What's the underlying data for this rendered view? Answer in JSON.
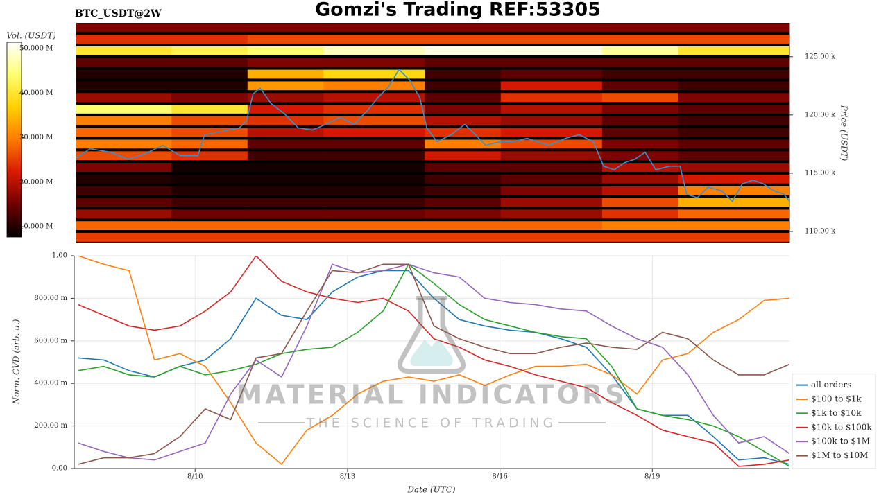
{
  "title": "Gomzi's Trading REF:53305",
  "watermark": {
    "name": "MATERIAL INDICATORS",
    "tagline": "THE SCIENCE OF TRADING"
  },
  "chart_data": [
    {
      "type": "heatmap",
      "title": "BTC_USDT@2W",
      "y_label": "Price (USDT)",
      "colorbar_label": "Vol. (USDT)",
      "xlim": [
        7.62,
        21.7
      ],
      "ylim": [
        109050,
        127900
      ],
      "yticks": [
        {
          "value": 110000,
          "label": "110.00 k"
        },
        {
          "value": 115000,
          "label": "115.00 k"
        },
        {
          "value": 120000,
          "label": "120.00 k"
        },
        {
          "value": 125000,
          "label": "125.00 k"
        }
      ],
      "clim": [
        7.7,
        51.4
      ],
      "cticks": [
        {
          "value": 10,
          "label": "10.000 M"
        },
        {
          "value": 20,
          "label": "20.000 M"
        },
        {
          "value": 30,
          "label": "30.000 M"
        },
        {
          "value": 40,
          "label": "40.000 M"
        },
        {
          "value": 50,
          "label": "50.000 M"
        }
      ],
      "colormap": [
        "#000000",
        "#6e0000",
        "#d81a00",
        "#ff7a00",
        "#ffd000",
        "#ffff70",
        "#ffffff"
      ],
      "x_edges": [
        7.62,
        9.5,
        11,
        12.5,
        14.5,
        16,
        18,
        19.5,
        21.7
      ],
      "y_edges": [
        109000,
        110000,
        111000,
        112000,
        113000,
        114000,
        115000,
        116000,
        117000,
        118000,
        119000,
        120000,
        121000,
        122000,
        123000,
        124000,
        125000,
        126000,
        127000,
        128000
      ],
      "z": [
        [
          25,
          25,
          25,
          25,
          25,
          25,
          25,
          25
        ],
        [
          28,
          28,
          28,
          28,
          28,
          28,
          30,
          30
        ],
        [
          18,
          15,
          15,
          15,
          16,
          18,
          24,
          28
        ],
        [
          14,
          12,
          12,
          12,
          14,
          18,
          26,
          34
        ],
        [
          12,
          10,
          10,
          10,
          12,
          16,
          20,
          30
        ],
        [
          10,
          9,
          9,
          9,
          12,
          14,
          18,
          22
        ],
        [
          16,
          9,
          9,
          9,
          14,
          14,
          20,
          18
        ],
        [
          26,
          24,
          12,
          12,
          22,
          18,
          16,
          14
        ],
        [
          30,
          28,
          14,
          14,
          30,
          26,
          16,
          14
        ],
        [
          28,
          26,
          20,
          22,
          24,
          22,
          14,
          12
        ],
        [
          30,
          26,
          24,
          26,
          20,
          18,
          14,
          12
        ],
        [
          44,
          40,
          22,
          24,
          16,
          20,
          16,
          14
        ],
        [
          18,
          16,
          18,
          20,
          14,
          24,
          26,
          16
        ],
        [
          10,
          10,
          32,
          30,
          12,
          22,
          14,
          12
        ],
        [
          10,
          10,
          34,
          38,
          12,
          14,
          12,
          12
        ],
        [
          14,
          14,
          16,
          16,
          14,
          14,
          14,
          14
        ],
        [
          40,
          42,
          44,
          48,
          50,
          50,
          46,
          40
        ],
        [
          24,
          24,
          26,
          26,
          26,
          26,
          26,
          26
        ],
        [
          16,
          16,
          16,
          16,
          16,
          16,
          16,
          16
        ]
      ],
      "series": [
        {
          "color": "#3a8fd0",
          "x": [
            7.62,
            7.89,
            8.3,
            8.65,
            8.99,
            9.33,
            9.67,
            10.02,
            10.15,
            10.5,
            10.84,
            10.98,
            11.11,
            11.25,
            11.46,
            11.73,
            12.0,
            12.28,
            12.55,
            12.83,
            13.1,
            13.37,
            13.58,
            13.78,
            13.99,
            14.2,
            14.4,
            14.54,
            14.74,
            15.02,
            15.29,
            15.5,
            15.7,
            15.98,
            16.25,
            16.52,
            16.94,
            17.28,
            17.55,
            17.83,
            18.03,
            18.24,
            18.44,
            18.65,
            18.85,
            19.06,
            19.33,
            19.54,
            19.67,
            19.88,
            20.09,
            20.36,
            20.57,
            20.77,
            20.98,
            21.18,
            21.39,
            21.59,
            21.7
          ],
          "values": [
            116300,
            117100,
            116800,
            116200,
            116700,
            117400,
            116500,
            116500,
            118300,
            118600,
            118900,
            119500,
            121800,
            122300,
            121000,
            120100,
            118900,
            118700,
            119200,
            119800,
            119200,
            120400,
            121500,
            122400,
            123900,
            123000,
            121500,
            118900,
            117700,
            118300,
            119200,
            118300,
            117400,
            117700,
            117700,
            118000,
            117400,
            118000,
            118300,
            117700,
            115600,
            115300,
            115900,
            116200,
            116800,
            115300,
            115600,
            115600,
            113200,
            112900,
            113800,
            113500,
            112600,
            114100,
            114400,
            114100,
            113500,
            113200,
            112600
          ]
        }
      ]
    },
    {
      "type": "line",
      "x_label": "Date (UTC)",
      "y_label": "Norm. CVD (arb. u.)",
      "xlim": [
        7.62,
        21.7
      ],
      "xticks": [
        {
          "value": 10,
          "label": "8/10"
        },
        {
          "value": 13,
          "label": "8/13"
        },
        {
          "value": 16,
          "label": "8/16"
        },
        {
          "value": 19,
          "label": "8/19"
        }
      ],
      "ylim": [
        0,
        1
      ],
      "yticks": [
        {
          "value": 0,
          "label": "0.00"
        },
        {
          "value": 0.2,
          "label": "200.00 m"
        },
        {
          "value": 0.4,
          "label": "400.00 m"
        },
        {
          "value": 0.6,
          "label": "600.00 m"
        },
        {
          "value": 0.8,
          "label": "800.00 m"
        },
        {
          "value": 1,
          "label": "1.00"
        }
      ],
      "grid": true,
      "legend": "lower right",
      "x": [
        7.7,
        8.2,
        8.7,
        9.2,
        9.7,
        10.2,
        10.7,
        11.2,
        11.7,
        12.2,
        12.7,
        13.2,
        13.7,
        14.2,
        14.7,
        15.2,
        15.7,
        16.2,
        16.7,
        17.2,
        17.7,
        18.2,
        18.7,
        19.2,
        19.7,
        20.2,
        20.7,
        21.2,
        21.7
      ],
      "series": [
        {
          "name": "all orders",
          "color": "#1f77b4",
          "values": [
            0.52,
            0.51,
            0.46,
            0.43,
            0.48,
            0.51,
            0.61,
            0.8,
            0.72,
            0.7,
            0.83,
            0.9,
            0.93,
            0.93,
            0.8,
            0.7,
            0.67,
            0.65,
            0.64,
            0.61,
            0.57,
            0.44,
            0.28,
            0.25,
            0.25,
            0.15,
            0.04,
            0.05,
            0.02
          ]
        },
        {
          "name": "$100 to $1k",
          "color": "#ff7f0e",
          "values": [
            1.0,
            0.96,
            0.93,
            0.51,
            0.54,
            0.48,
            0.31,
            0.12,
            0.02,
            0.18,
            0.25,
            0.35,
            0.41,
            0.43,
            0.41,
            0.44,
            0.39,
            0.44,
            0.48,
            0.48,
            0.49,
            0.44,
            0.35,
            0.51,
            0.54,
            0.64,
            0.7,
            0.79,
            0.8
          ]
        },
        {
          "name": "$1k to $10k",
          "color": "#2ca02c",
          "values": [
            0.46,
            0.48,
            0.44,
            0.43,
            0.48,
            0.44,
            0.46,
            0.49,
            0.54,
            0.56,
            0.57,
            0.64,
            0.74,
            0.96,
            0.87,
            0.77,
            0.7,
            0.67,
            0.64,
            0.62,
            0.61,
            0.48,
            0.28,
            0.25,
            0.23,
            0.2,
            0.15,
            0.08,
            0.01
          ]
        },
        {
          "name": "$10k to $100k",
          "color": "#d62728",
          "values": [
            0.77,
            0.72,
            0.67,
            0.65,
            0.67,
            0.74,
            0.83,
            1.0,
            0.88,
            0.83,
            0.8,
            0.78,
            0.8,
            0.74,
            0.61,
            0.57,
            0.51,
            0.48,
            0.44,
            0.41,
            0.38,
            0.31,
            0.25,
            0.18,
            0.15,
            0.12,
            0.01,
            0.02,
            0.04
          ]
        },
        {
          "name": "$100k to $1M",
          "color": "#9467bd",
          "values": [
            0.12,
            0.08,
            0.05,
            0.04,
            0.08,
            0.12,
            0.35,
            0.51,
            0.43,
            0.67,
            0.96,
            0.92,
            0.93,
            0.96,
            0.92,
            0.9,
            0.8,
            0.78,
            0.77,
            0.75,
            0.74,
            0.67,
            0.61,
            0.57,
            0.44,
            0.25,
            0.12,
            0.15,
            0.07
          ]
        },
        {
          "name": "$1M to $10M",
          "color": "#8c564b",
          "values": [
            0.02,
            0.05,
            0.05,
            0.07,
            0.15,
            0.28,
            0.23,
            0.52,
            0.54,
            0.74,
            0.93,
            0.92,
            0.96,
            0.96,
            0.67,
            0.61,
            0.57,
            0.54,
            0.54,
            0.57,
            0.59,
            0.57,
            0.56,
            0.64,
            0.61,
            0.51,
            0.44,
            0.44,
            0.49
          ]
        }
      ]
    }
  ]
}
